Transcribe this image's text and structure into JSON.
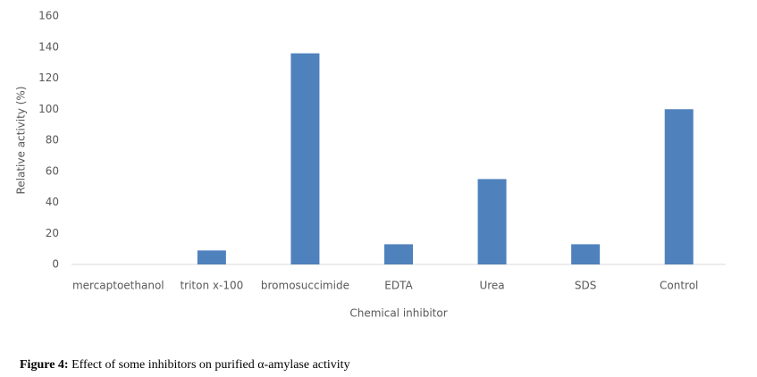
{
  "chart_data": {
    "type": "bar",
    "categories": [
      "mercaptoethanol",
      "triton x-100",
      "bromosuccimide",
      "EDTA",
      "Urea",
      "SDS",
      "Control"
    ],
    "values": [
      0,
      9,
      136,
      13,
      55,
      13,
      100
    ],
    "color": "#4f81bd",
    "x_label": "Chemical inhibitor",
    "y_label": "Relative activity (%)",
    "ylim": [
      0,
      160
    ],
    "yticks": [
      0,
      20,
      40,
      60,
      80,
      100,
      120,
      140,
      160
    ],
    "grid": false
  },
  "caption": {
    "label": "Figure 4:",
    "text": "Effect of some inhibitors on purified α-amylase activity"
  }
}
